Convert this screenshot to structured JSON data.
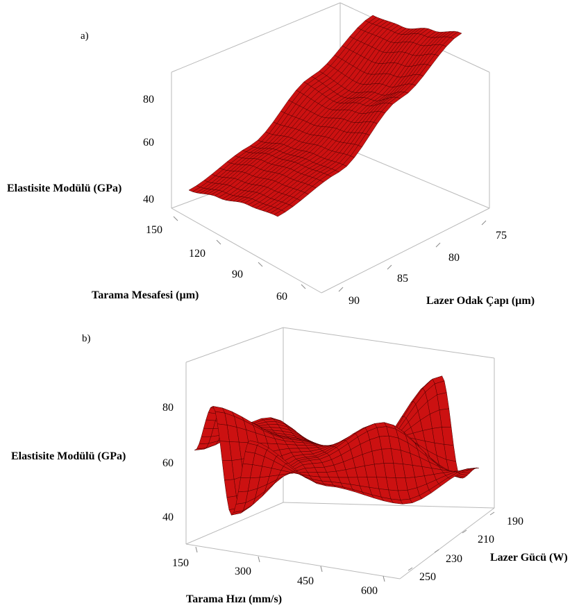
{
  "panel_labels": [
    "a)",
    "b)"
  ],
  "chart_data": [
    {
      "type": "surface3d",
      "title": "",
      "zlabel": "Elastisite Modülü  (GPa)",
      "xlabel": "Tarama Mesafesi (µm)",
      "ylabel": "Lazer Odak Çapı (µm)",
      "x_ticks": [
        "150",
        "120",
        "90",
        "60"
      ],
      "y_ticks": [
        "75",
        "80",
        "85",
        "90"
      ],
      "z_ticks": [
        "40",
        "60",
        "80"
      ],
      "zlim": [
        40,
        90
      ],
      "surface_color": "#cc1111",
      "grid_lines": "#4a0000",
      "rows": [
        "hatch-150",
        "hatch-120",
        "hatch-90",
        "hatch-60"
      ],
      "cols": [
        "spot-75",
        "spot-80",
        "spot-85",
        "spot-90"
      ],
      "z": [
        [
          46,
          52,
          72,
          88
        ],
        [
          44,
          50,
          64,
          82
        ],
        [
          40,
          47,
          58,
          76
        ],
        [
          36,
          42,
          60,
          74
        ]
      ]
    },
    {
      "type": "surface3d",
      "title": "",
      "zlabel": "Elastisite Modülü  (GPa)",
      "xlabel": "Tarama Hızı (mm/s)",
      "ylabel": "Lazer Gücü (W)",
      "x_ticks": [
        "150",
        "300",
        "450",
        "600"
      ],
      "y_ticks": [
        "190",
        "210",
        "230",
        "250"
      ],
      "z_ticks": [
        "40",
        "60",
        "80"
      ],
      "zlim": [
        38,
        85
      ],
      "surface_color": "#cc1111",
      "grid_lines": "#4a0000",
      "rows": [
        "speed-150",
        "speed-300",
        "speed-450",
        "speed-600"
      ],
      "cols": [
        "power-190",
        "power-210",
        "power-230",
        "power-250"
      ],
      "z": [
        [
          64,
          52,
          48,
          60
        ],
        [
          40,
          58,
          70,
          55
        ],
        [
          70,
          62,
          58,
          83
        ],
        [
          55,
          66,
          50,
          66
        ]
      ]
    }
  ]
}
